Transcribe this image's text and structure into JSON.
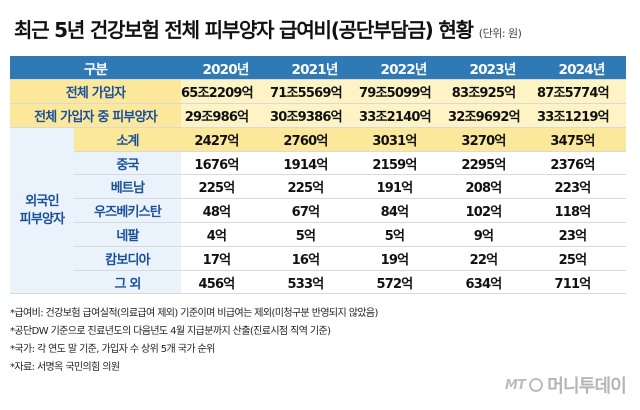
{
  "title": "최근 5년 건강보험 전체 피부양자 급여비(공단부담금) 현황",
  "unit": "(단위: 원)",
  "table": {
    "category_header": "구분",
    "years": [
      "2020년",
      "2021년",
      "2022년",
      "2023년",
      "2024년"
    ],
    "top_rows": [
      {
        "label": "전체 가입자",
        "values": [
          "65조2209억",
          "71조5569억",
          "79조5099억",
          "83조925억",
          "87조5774억"
        ]
      },
      {
        "label": "전체 가입자 중 피부양자",
        "values": [
          "29조986억",
          "30조9386억",
          "33조2140억",
          "32조9692억",
          "33조1219억"
        ]
      }
    ],
    "group_label": "외국인\n피부양자",
    "group_rows": [
      {
        "label": "소계",
        "values": [
          "2427억",
          "2760억",
          "3031억",
          "3270억",
          "3475억"
        ]
      },
      {
        "label": "중국",
        "values": [
          "1676억",
          "1914억",
          "2159억",
          "2295억",
          "2376억"
        ]
      },
      {
        "label": "베트남",
        "values": [
          "225억",
          "225억",
          "191억",
          "208억",
          "223억"
        ]
      },
      {
        "label": "우즈베키스탄",
        "values": [
          "48억",
          "67억",
          "84억",
          "102억",
          "118억"
        ]
      },
      {
        "label": "네팔",
        "values": [
          "4억",
          "5억",
          "5억",
          "9억",
          "23억"
        ]
      },
      {
        "label": "캄보디아",
        "values": [
          "17억",
          "16억",
          "19억",
          "22억",
          "25억"
        ]
      },
      {
        "label": "그 외",
        "values": [
          "456억",
          "533억",
          "572억",
          "634억",
          "711억"
        ]
      }
    ]
  },
  "notes": [
    "*급여비: 건강보험 급여실적(의료급여 제외) 기준이며 비급여는 제외(미청구분 반영되지 않았음)",
    "*공단DW 기준으로 진료년도의 다음년도 4월 지급분까지 산출(진료시점 직역 기준)",
    "*국가: 각 연도 말 기준, 가입자 수 상위 5개 국가 순위",
    "*자료: 서명옥 국민의힘 의원"
  ],
  "logo": {
    "prefix": "MT",
    "name": "머니투데이"
  }
}
